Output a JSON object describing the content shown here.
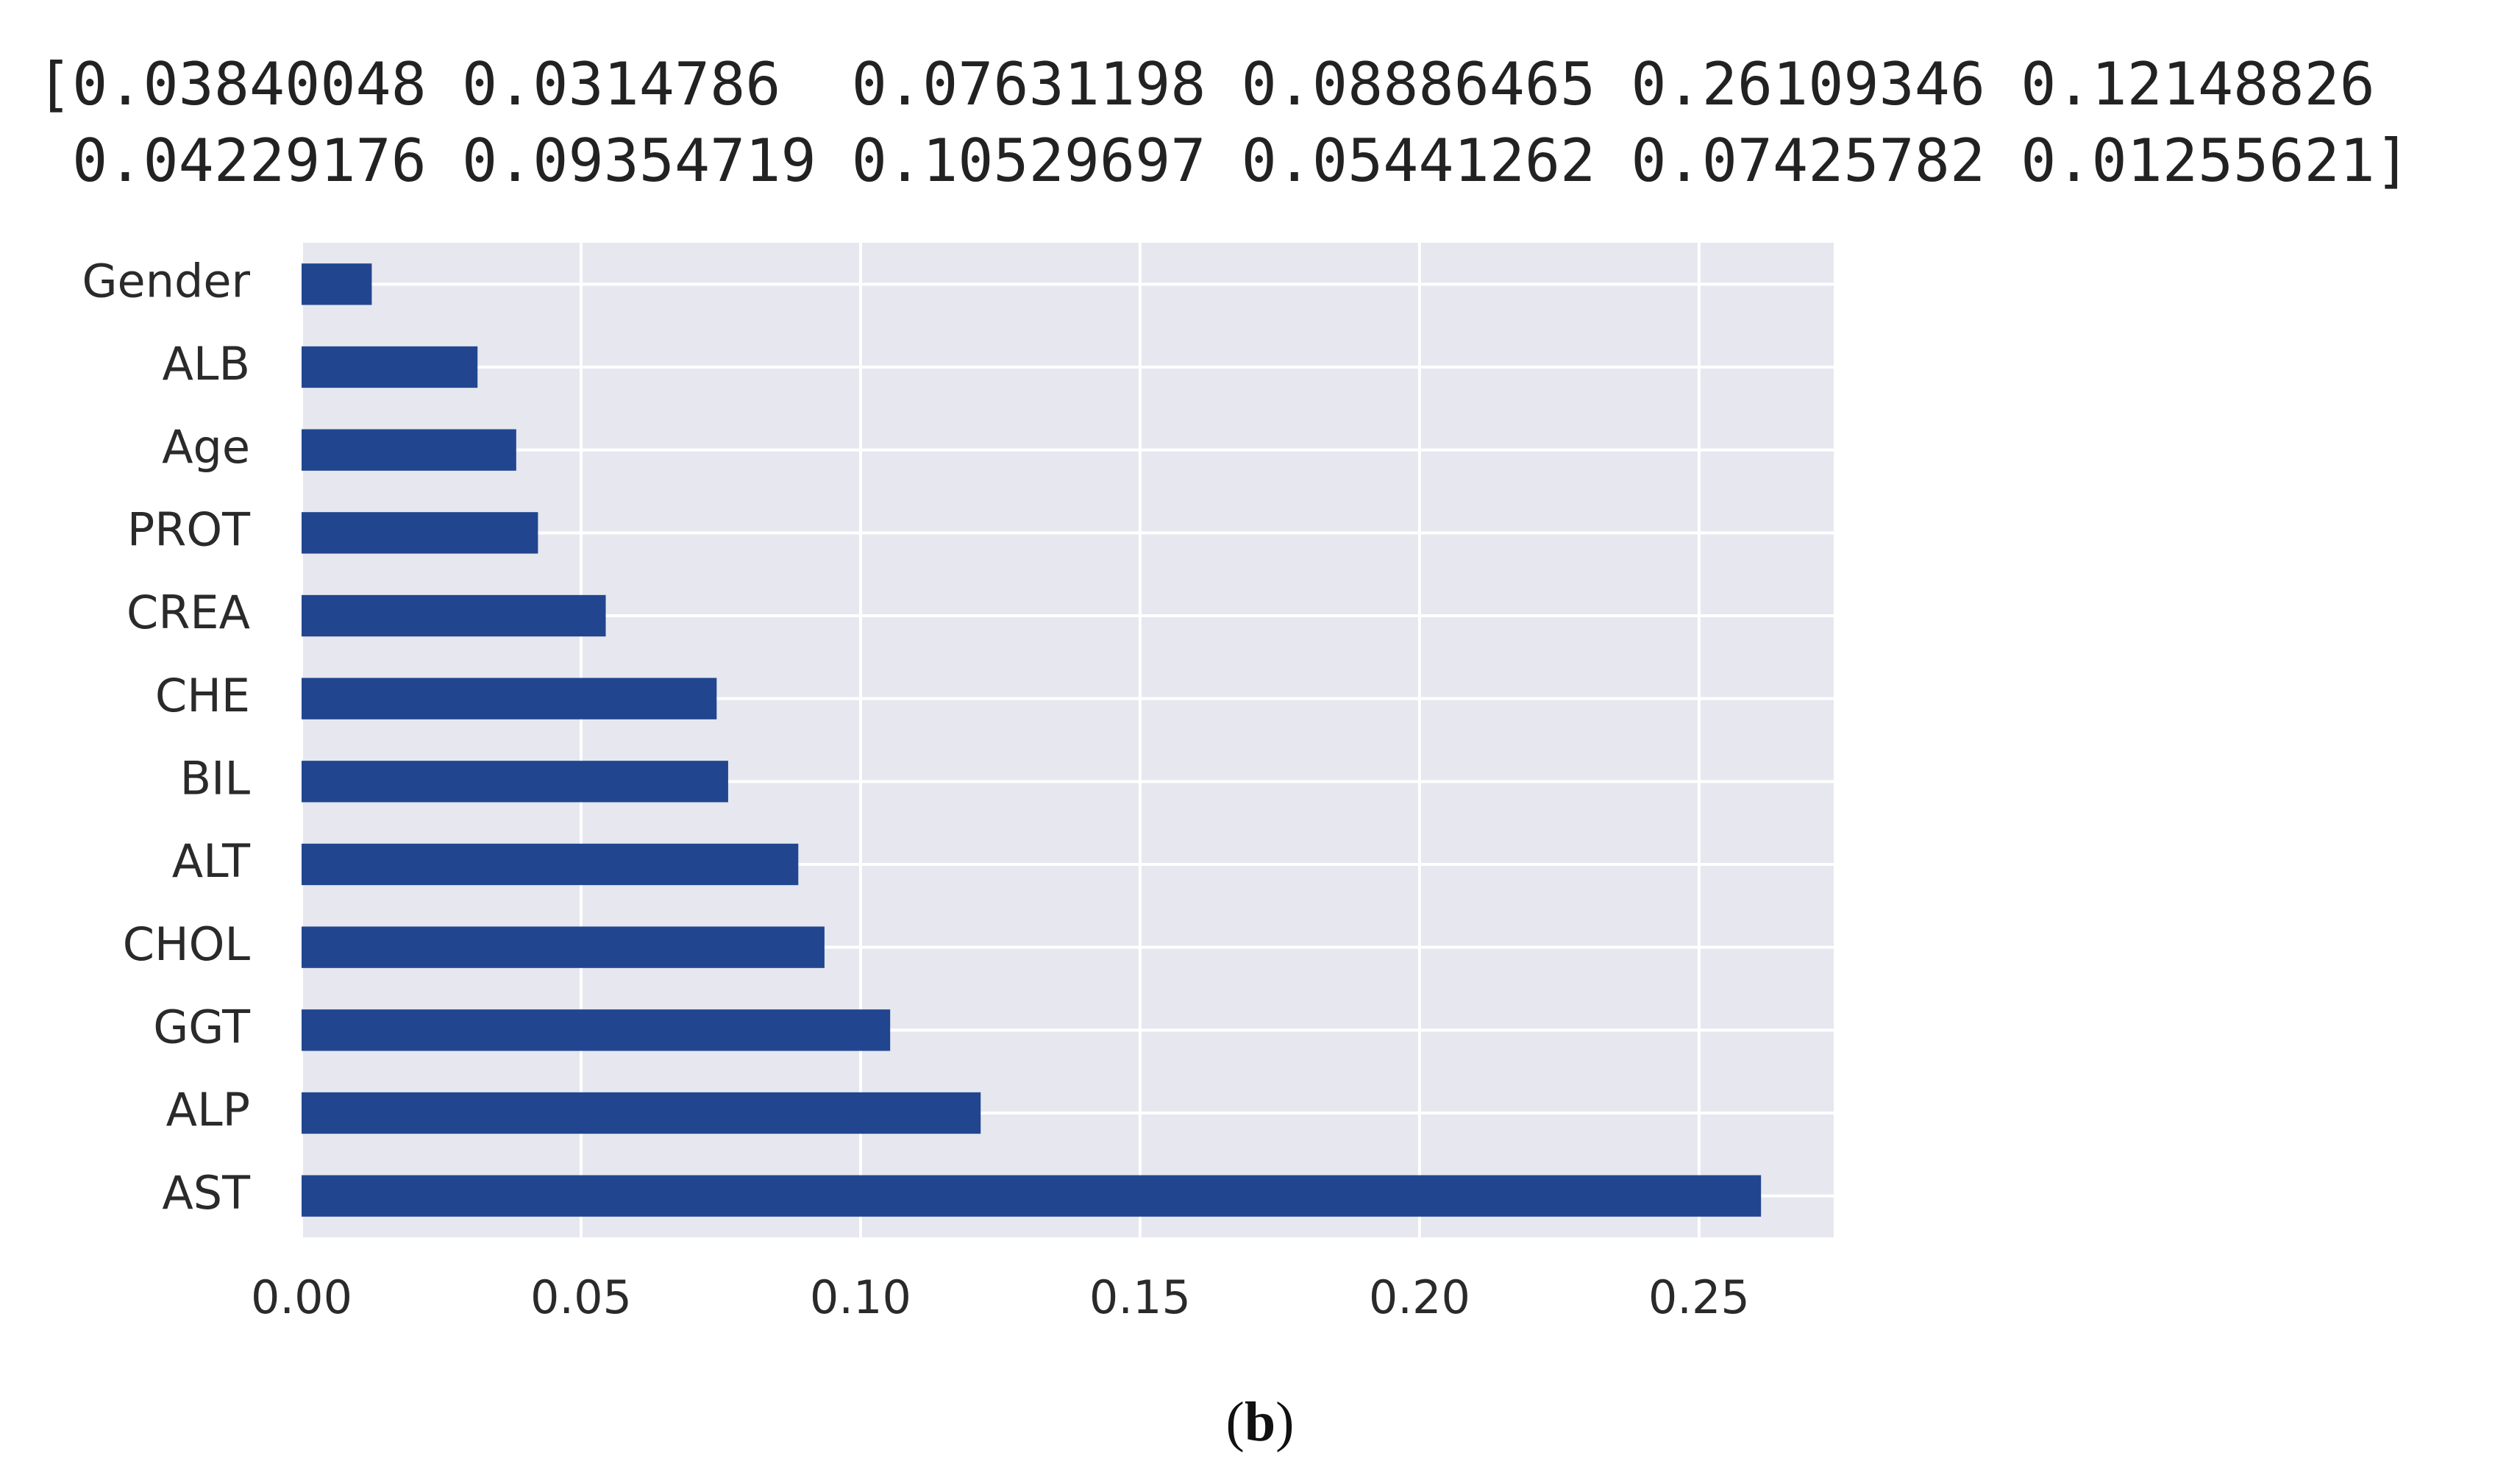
{
  "chart_data": {
    "type": "barh",
    "printed_output": [
      "[0.03840048 0.0314786  0.07631198 0.08886465 0.26109346 0.12148826",
      " 0.04229176 0.09354719 0.10529697 0.05441262 0.07425782 0.01255621]"
    ],
    "categories": [
      "Gender",
      "ALB",
      "Age",
      "PROT",
      "CREA",
      "CHE",
      "BIL",
      "ALT",
      "CHOL",
      "GGT",
      "ALP",
      "AST"
    ],
    "values": [
      0.01255621,
      0.0314786,
      0.03840048,
      0.04229176,
      0.05441262,
      0.07425782,
      0.07631198,
      0.08886465,
      0.09354719,
      0.10529697,
      0.12148826,
      0.26109346
    ],
    "color": "#21468f",
    "xlim": [
      0,
      0.2741
    ],
    "xticks": [
      {
        "value": 0,
        "label": "0.00"
      },
      {
        "value": 0.05,
        "label": "0.05"
      },
      {
        "value": 0.1,
        "label": "0.10"
      },
      {
        "value": 0.15,
        "label": "0.15"
      },
      {
        "value": 0.2,
        "label": "0.20"
      },
      {
        "value": 0.25,
        "label": "0.25"
      }
    ],
    "grid": true,
    "caption": [
      "(",
      "b",
      ")"
    ]
  }
}
